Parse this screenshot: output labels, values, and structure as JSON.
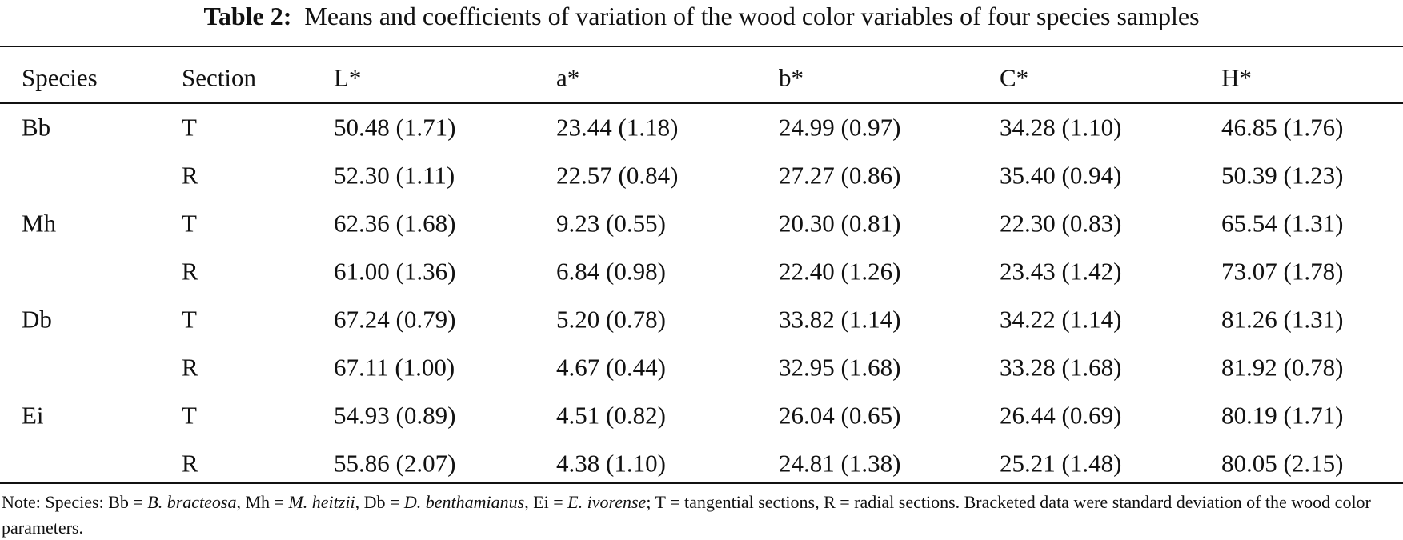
{
  "title": {
    "label": "Table 2:",
    "text": "Means and coefficients of variation of the wood color variables of four species samples"
  },
  "table": {
    "header": [
      "Species",
      "Section",
      "L*",
      "a*",
      "b*",
      "C*",
      "H*"
    ],
    "groups": [
      {
        "species": "Bb",
        "rows": [
          {
            "section": "T",
            "values": [
              "50.48 (1.71)",
              "23.44 (1.18)",
              "24.99 (0.97)",
              "34.28 (1.10)",
              "46.85 (1.76)"
            ]
          },
          {
            "section": "R",
            "values": [
              "52.30 (1.11)",
              "22.57 (0.84)",
              "27.27 (0.86)",
              "35.40 (0.94)",
              "50.39 (1.23)"
            ]
          }
        ]
      },
      {
        "species": "Mh",
        "rows": [
          {
            "section": "T",
            "values": [
              "62.36 (1.68)",
              "9.23 (0.55)",
              "20.30 (0.81)",
              "22.30 (0.83)",
              "65.54 (1.31)"
            ]
          },
          {
            "section": "R",
            "values": [
              "61.00 (1.36)",
              "6.84 (0.98)",
              "22.40 (1.26)",
              "23.43 (1.42)",
              "73.07 (1.78)"
            ]
          }
        ]
      },
      {
        "species": "Db",
        "rows": [
          {
            "section": "T",
            "values": [
              "67.24 (0.79)",
              "5.20 (0.78)",
              "33.82 (1.14)",
              "34.22 (1.14)",
              "81.26 (1.31)"
            ]
          },
          {
            "section": "R",
            "values": [
              "67.11 (1.00)",
              "4.67 (0.44)",
              "32.95 (1.68)",
              "33.28 (1.68)",
              "81.92 (0.78)"
            ]
          }
        ]
      },
      {
        "species": "Ei",
        "rows": [
          {
            "section": "T",
            "values": [
              "54.93 (0.89)",
              "4.51 (0.82)",
              "26.04 (0.65)",
              "26.44 (0.69)",
              "80.19 (1.71)"
            ]
          },
          {
            "section": "R",
            "values": [
              "55.86 (2.07)",
              "4.38 (1.10)",
              "24.81 (1.38)",
              "25.21 (1.48)",
              "80.05 (2.15)"
            ]
          }
        ]
      }
    ]
  },
  "note": [
    "Note: Species: Bb = ",
    "B. bracteosa",
    ", Mh = ",
    "M. heitzii",
    ", Db = ",
    "D. benthamianus",
    ", Ei = ",
    "E. ivorense",
    "; T = tangential sections, R = radial sections. Bracketed data were standard deviation of the wood color parameters."
  ]
}
